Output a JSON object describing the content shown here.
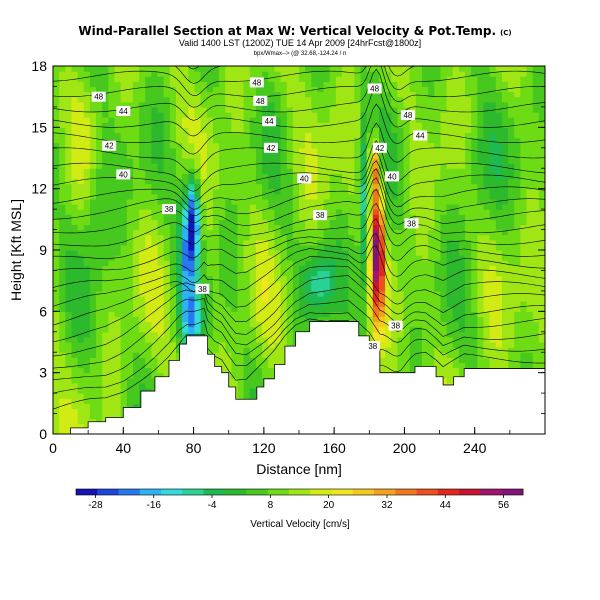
{
  "chart_data": {
    "type": "heatmap",
    "title": "Wind-Parallel Section at Max W: Vertical Velocity & Pot.Temp.",
    "copyright": "(C)",
    "subtitle": "Valid 1400 LST (1200Z) TUE 14 Apr 2009 [24hrFcst@1800z]",
    "subtitle2": "bpx/Wmax--> (@ 32.68,-124.24 / n",
    "xlabel": "Distance [nm]",
    "ylabel": "Height [Kft MSL]",
    "xlim": [
      0,
      280
    ],
    "ylim": [
      0,
      18
    ],
    "x_ticks": [
      0,
      40,
      80,
      120,
      160,
      200,
      240
    ],
    "y_ticks": [
      0,
      3,
      6,
      9,
      12,
      15,
      18
    ],
    "grid": false,
    "colorbar": {
      "label": "Vertical Velocity [cm/s]",
      "ticks": [
        -28,
        -16,
        -4,
        8,
        20,
        32,
        44,
        56
      ],
      "range": [
        -32,
        60
      ],
      "colors": [
        "#1414b4",
        "#1e46dc",
        "#2878f0",
        "#2db4f0",
        "#32dcdc",
        "#28d296",
        "#1eb950",
        "#2db92d",
        "#46c81e",
        "#6edc14",
        "#a0e614",
        "#d2eb14",
        "#f0e61e",
        "#f5c81e",
        "#f5a01e",
        "#f0781e",
        "#eb501e",
        "#e1281e",
        "#c81432",
        "#a0146e",
        "#821478"
      ]
    },
    "contour_labels": [
      {
        "value": "48",
        "x": 26,
        "y": 16.5
      },
      {
        "value": "44",
        "x": 40,
        "y": 15.8
      },
      {
        "value": "42",
        "x": 32,
        "y": 14.1
      },
      {
        "value": "40",
        "x": 40,
        "y": 12.7
      },
      {
        "value": "38",
        "x": 66,
        "y": 11.0
      },
      {
        "value": "38",
        "x": 85,
        "y": 7.1
      },
      {
        "value": "48",
        "x": 116,
        "y": 17.2
      },
      {
        "value": "48",
        "x": 118,
        "y": 16.3
      },
      {
        "value": "44",
        "x": 123,
        "y": 15.3
      },
      {
        "value": "42",
        "x": 124,
        "y": 14.0
      },
      {
        "value": "40",
        "x": 143,
        "y": 12.5
      },
      {
        "value": "38",
        "x": 152,
        "y": 10.7
      },
      {
        "value": "48",
        "x": 183,
        "y": 16.9
      },
      {
        "value": "48",
        "x": 202,
        "y": 15.6
      },
      {
        "value": "44",
        "x": 209,
        "y": 14.6
      },
      {
        "value": "42",
        "x": 186,
        "y": 14.0
      },
      {
        "value": "40",
        "x": 193,
        "y": 12.6
      },
      {
        "value": "38",
        "x": 204,
        "y": 10.3
      },
      {
        "value": "38",
        "x": 195,
        "y": 5.3
      },
      {
        "value": "38",
        "x": 182,
        "y": 4.3
      }
    ],
    "terrain_heights_kft": [
      {
        "x": 0,
        "h": 0.0
      },
      {
        "x": 10,
        "h": 0.3
      },
      {
        "x": 20,
        "h": 0.6
      },
      {
        "x": 30,
        "h": 0.8
      },
      {
        "x": 40,
        "h": 1.3
      },
      {
        "x": 50,
        "h": 2.1
      },
      {
        "x": 58,
        "h": 2.8
      },
      {
        "x": 66,
        "h": 3.6
      },
      {
        "x": 72,
        "h": 4.4
      },
      {
        "x": 76,
        "h": 4.8
      },
      {
        "x": 86,
        "h": 4.8
      },
      {
        "x": 88,
        "h": 3.9
      },
      {
        "x": 92,
        "h": 3.3
      },
      {
        "x": 96,
        "h": 3.0
      },
      {
        "x": 100,
        "h": 2.3
      },
      {
        "x": 104,
        "h": 1.7
      },
      {
        "x": 110,
        "h": 1.7
      },
      {
        "x": 116,
        "h": 2.3
      },
      {
        "x": 120,
        "h": 2.7
      },
      {
        "x": 126,
        "h": 3.4
      },
      {
        "x": 132,
        "h": 4.3
      },
      {
        "x": 138,
        "h": 5.0
      },
      {
        "x": 146,
        "h": 5.5
      },
      {
        "x": 168,
        "h": 5.5
      },
      {
        "x": 174,
        "h": 4.8
      },
      {
        "x": 180,
        "h": 4.1
      },
      {
        "x": 186,
        "h": 3.0
      },
      {
        "x": 198,
        "h": 3.0
      },
      {
        "x": 206,
        "h": 3.3
      },
      {
        "x": 212,
        "h": 3.3
      },
      {
        "x": 218,
        "h": 2.8
      },
      {
        "x": 222,
        "h": 2.4
      },
      {
        "x": 228,
        "h": 2.8
      },
      {
        "x": 234,
        "h": 3.2
      },
      {
        "x": 280,
        "h": 3.2
      }
    ],
    "features": [
      {
        "name": "downdraft",
        "x": 80,
        "y": 10.5,
        "value": -24
      },
      {
        "name": "updraft-core",
        "x": 184,
        "y": 9.5,
        "value": 56
      },
      {
        "name": "updraft-upper",
        "x": 184,
        "y": 13.0,
        "value": 32
      }
    ]
  }
}
